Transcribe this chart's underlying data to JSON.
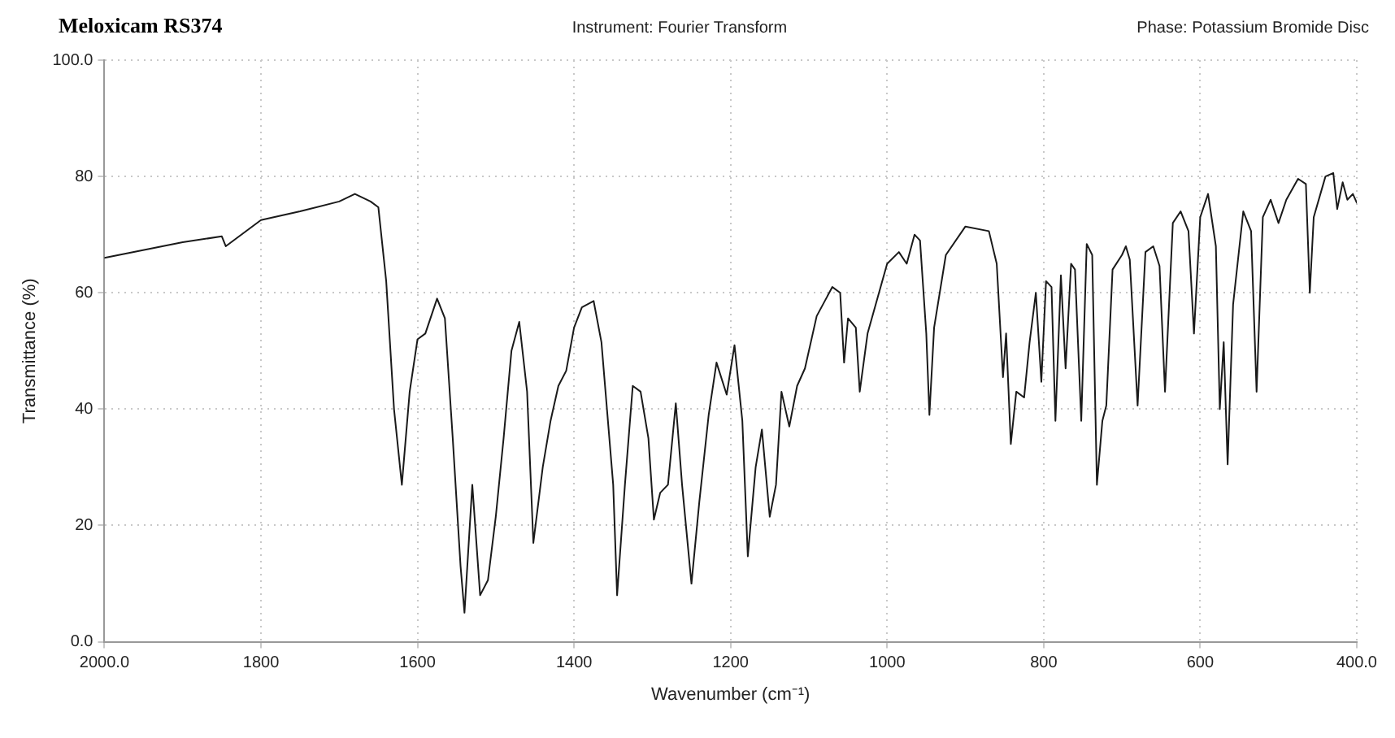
{
  "chart_data": {
    "type": "line",
    "title": "Meloxicam RS374",
    "annotations": [
      "Instrument: Fourier Transform",
      "Phase: Potassium Bromide Disc"
    ],
    "xlabel": "Wavenumber (cm⁻¹)",
    "ylabel": "Transmittance (%)",
    "x": [
      2000,
      1900,
      1850,
      1845,
      1800,
      1750,
      1700,
      1680,
      1660,
      1650,
      1640,
      1630,
      1620,
      1610,
      1600,
      1590,
      1575,
      1565,
      1555,
      1545,
      1540,
      1530,
      1520,
      1510,
      1500,
      1490,
      1480,
      1470,
      1460,
      1452,
      1440,
      1430,
      1420,
      1410,
      1400,
      1390,
      1375,
      1365,
      1350,
      1345,
      1335,
      1325,
      1315,
      1305,
      1298,
      1290,
      1280,
      1270,
      1262,
      1250,
      1240,
      1228,
      1218,
      1205,
      1195,
      1185,
      1178,
      1168,
      1160,
      1150,
      1142,
      1135,
      1125,
      1115,
      1105,
      1090,
      1070,
      1060,
      1055,
      1050,
      1040,
      1035,
      1025,
      1000,
      985,
      975,
      965,
      958,
      950,
      946,
      940,
      925,
      900,
      870,
      860,
      852,
      848,
      842,
      835,
      825,
      818,
      810,
      803,
      797,
      790,
      785,
      778,
      772,
      765,
      760,
      752,
      745,
      738,
      732,
      725,
      720,
      712,
      700,
      695,
      690,
      680,
      670,
      660,
      652,
      645,
      635,
      625,
      615,
      608,
      600,
      590,
      580,
      575,
      570,
      565,
      558,
      545,
      535,
      528,
      520,
      510,
      500,
      490,
      475,
      465,
      460,
      455,
      440,
      430,
      425,
      418,
      412,
      405,
      400
    ],
    "values": [
      66,
      68.7,
      69.7,
      68,
      72.5,
      74,
      75.7,
      77,
      75.7,
      74.7,
      62,
      40,
      27,
      43,
      52,
      53,
      59,
      55.6,
      35,
      13,
      5,
      27,
      8,
      10.6,
      21.5,
      35,
      50,
      55,
      43,
      17,
      30,
      38,
      44,
      46.6,
      54,
      57.5,
      58.6,
      51.5,
      27,
      8,
      27,
      44,
      43,
      35,
      21,
      25.6,
      27,
      41,
      27,
      10,
      24,
      39,
      48,
      42.5,
      51,
      38,
      14.7,
      30,
      36.5,
      21.5,
      27,
      43,
      37,
      44,
      47,
      56,
      61,
      60,
      48,
      55.6,
      54,
      43,
      53,
      65,
      67,
      65,
      70,
      69,
      53,
      39,
      54,
      66.5,
      71.4,
      70.6,
      65,
      45.5,
      53,
      34,
      43,
      42,
      51.5,
      60,
      44.7,
      62,
      61,
      38,
      63,
      47,
      65,
      64,
      38,
      68.4,
      66.5,
      27,
      38,
      40.6,
      64,
      66.5,
      68,
      65.7,
      40.6,
      67,
      68,
      64.6,
      43,
      72,
      74,
      70.6,
      53,
      73,
      77,
      68,
      40,
      51.5,
      30.5,
      58,
      74,
      70.6,
      43,
      73,
      76,
      72,
      76,
      79.6,
      78.7,
      60,
      73,
      80,
      80.6,
      74.4,
      79,
      76,
      77,
      75.5
    ],
    "color": "#1a1a1a",
    "marker": "none",
    "line_style": "solid",
    "xlim": [
      2000,
      400
    ],
    "ylim": [
      0,
      100
    ],
    "xticks": [
      {
        "value": 2000,
        "label": "2000.0"
      },
      1800,
      1600,
      1400,
      1200,
      1000,
      800,
      600,
      {
        "value": 400,
        "label": "400.0"
      }
    ],
    "yticks": [
      {
        "value": 0,
        "label": "0.0"
      },
      20,
      40,
      60,
      80,
      {
        "value": 100,
        "label": "100.0"
      }
    ],
    "grid": true
  }
}
